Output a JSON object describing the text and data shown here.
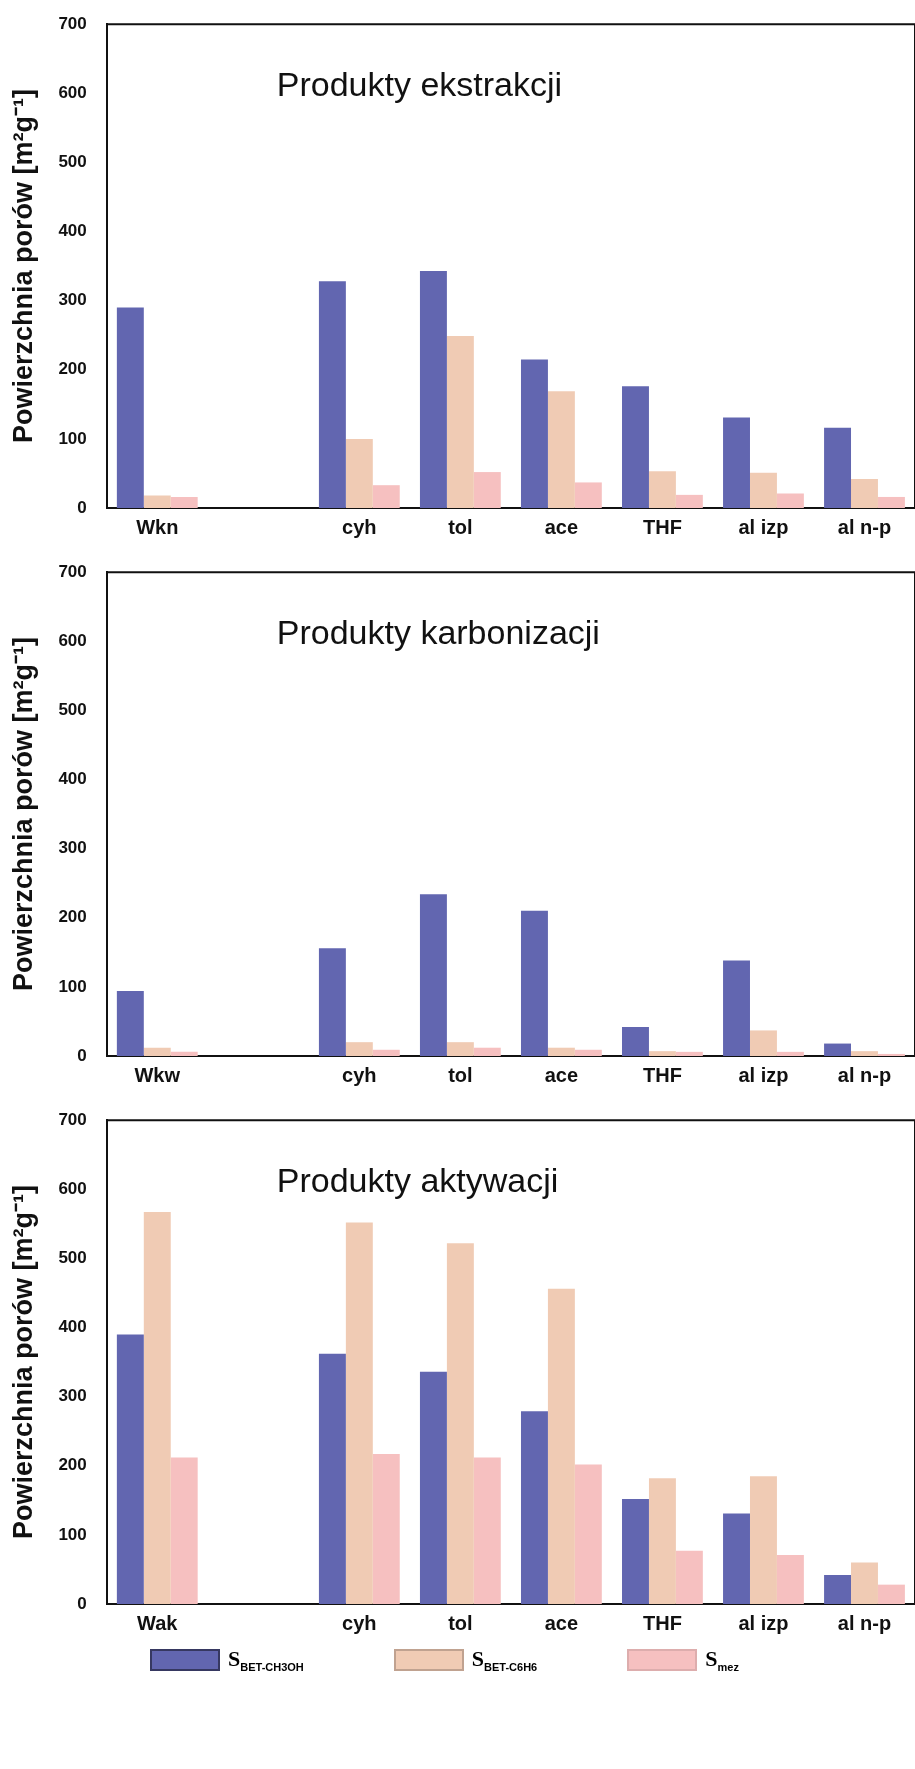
{
  "chart_data": [
    {
      "type": "bar",
      "title": "Produkty ekstrakcji",
      "ylabel": "Powierzchnia porów [m²g⁻¹]",
      "categories": [
        "Wkn",
        null,
        "cyh",
        "tol",
        "ace",
        "THF",
        "al izp",
        "al n-p"
      ],
      "series": [
        {
          "color": "#6266b0",
          "values": [
            290,
            null,
            328,
            343,
            215,
            176,
            131,
            116
          ]
        },
        {
          "color": "#f0cbb4",
          "values": [
            18,
            null,
            100,
            249,
            169,
            53,
            51,
            42
          ]
        },
        {
          "color": "#f6c0c0",
          "values": [
            16,
            null,
            33,
            52,
            37,
            19,
            21,
            16
          ]
        }
      ],
      "ylim": [
        0,
        700
      ],
      "yticks": [
        0,
        100,
        200,
        300,
        400,
        500,
        600,
        700
      ],
      "grid": false,
      "legend": false
    },
    {
      "type": "bar",
      "title": "Produkty karbonizacji",
      "ylabel": "Powierzchnia porów [m²g⁻¹]",
      "categories": [
        "Wkw",
        null,
        "cyh",
        "tol",
        "ace",
        "THF",
        "al izp",
        "al n-p"
      ],
      "series": [
        {
          "color": "#6266b0",
          "values": [
            94,
            null,
            156,
            234,
            210,
            42,
            138,
            18
          ]
        },
        {
          "color": "#f0cbb4",
          "values": [
            12,
            null,
            20,
            20,
            12,
            7,
            37,
            7
          ]
        },
        {
          "color": "#f6c0c0",
          "values": [
            6,
            null,
            9,
            12,
            9,
            6,
            6,
            3
          ]
        }
      ],
      "ylim": [
        0,
        700
      ],
      "yticks": [
        0,
        100,
        200,
        300,
        400,
        500,
        600,
        700
      ],
      "grid": false,
      "legend": false
    },
    {
      "type": "bar",
      "title": "Produkty aktywacji",
      "ylabel": "Powierzchnia porów [m²g⁻¹]",
      "categories": [
        "Wak",
        null,
        "cyh",
        "tol",
        "ace",
        "THF",
        "al izp",
        "al n-p"
      ],
      "series": [
        {
          "name": "S$_{BET-CH3OH}$",
          "color": "#6266b0",
          "values": [
            390,
            null,
            362,
            336,
            279,
            152,
            131,
            42
          ]
        },
        {
          "name": "S$_{BET-C6H6}$",
          "color": "#f0cbb4",
          "values": [
            567,
            null,
            552,
            522,
            456,
            182,
            185,
            60
          ]
        },
        {
          "name": "S$_{mez}$",
          "color": "#f6c0c0",
          "values": [
            212,
            null,
            217,
            212,
            202,
            77,
            71,
            28
          ]
        }
      ],
      "ylim": [
        0,
        700
      ],
      "yticks": [
        0,
        100,
        200,
        300,
        400,
        500,
        600,
        700
      ],
      "grid": false,
      "legend": "bottom"
    }
  ]
}
